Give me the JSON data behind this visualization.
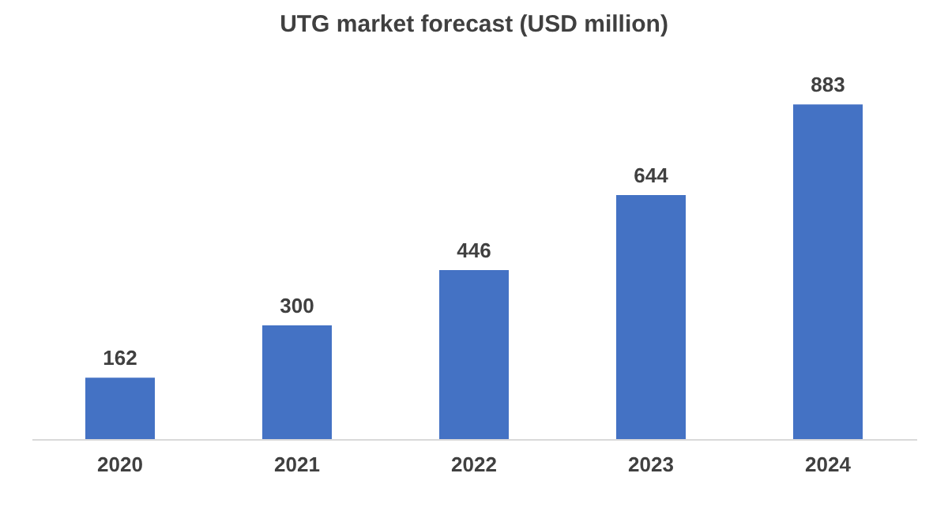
{
  "chart_data": {
    "type": "bar",
    "title": "UTG market forecast (USD million)",
    "categories": [
      "2020",
      "2021",
      "2022",
      "2023",
      "2024"
    ],
    "values": [
      162,
      300,
      446,
      644,
      883
    ],
    "color": "#4472c4",
    "data_labels": true,
    "grid": false
  }
}
